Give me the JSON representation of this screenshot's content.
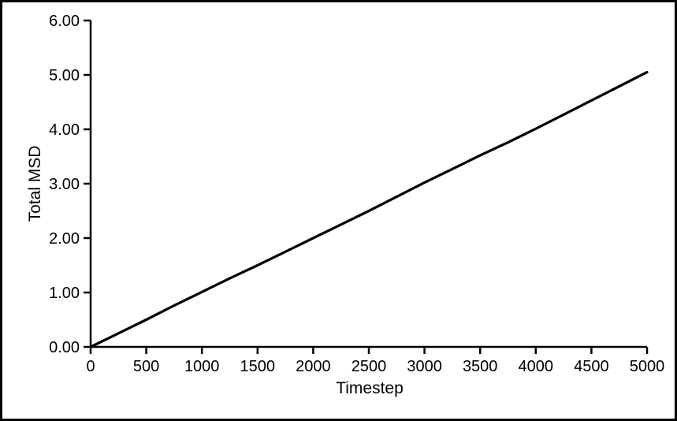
{
  "frame": {
    "background": "#ffffff",
    "border_color": "#000000"
  },
  "chart_data": {
    "type": "line",
    "title": "",
    "xlabel": "Timestep",
    "ylabel": "Total MSD",
    "xlim": [
      0,
      5000
    ],
    "ylim": [
      0,
      6
    ],
    "grid": false,
    "legend_position": "none",
    "axis_color": "#000000",
    "tick_label_color": "#000000",
    "x_ticks": [
      0,
      500,
      1000,
      1500,
      2000,
      2500,
      3000,
      3500,
      4000,
      4500,
      5000
    ],
    "x_tick_labels": [
      "0",
      "500",
      "1000",
      "1500",
      "2000",
      "2500",
      "3000",
      "3500",
      "4000",
      "4500",
      "5000"
    ],
    "y_ticks": [
      0,
      1,
      2,
      3,
      4,
      5,
      6
    ],
    "y_tick_labels": [
      "0.00",
      "1.00",
      "2.00",
      "3.00",
      "4.00",
      "5.00",
      "6.00"
    ],
    "series": [
      {
        "name": "Total MSD",
        "color": "#000000",
        "line_width": 3.25,
        "x": [
          0,
          250,
          500,
          750,
          1000,
          1250,
          1500,
          1750,
          2000,
          2250,
          2500,
          2750,
          3000,
          3250,
          3500,
          3750,
          4000,
          4250,
          4500,
          4750,
          5000
        ],
        "y": [
          0.0,
          0.25,
          0.5,
          0.76,
          1.01,
          1.26,
          1.5,
          1.75,
          2.0,
          2.25,
          2.5,
          2.76,
          3.02,
          3.27,
          3.52,
          3.76,
          4.01,
          4.27,
          4.53,
          4.79,
          5.05
        ]
      }
    ]
  }
}
